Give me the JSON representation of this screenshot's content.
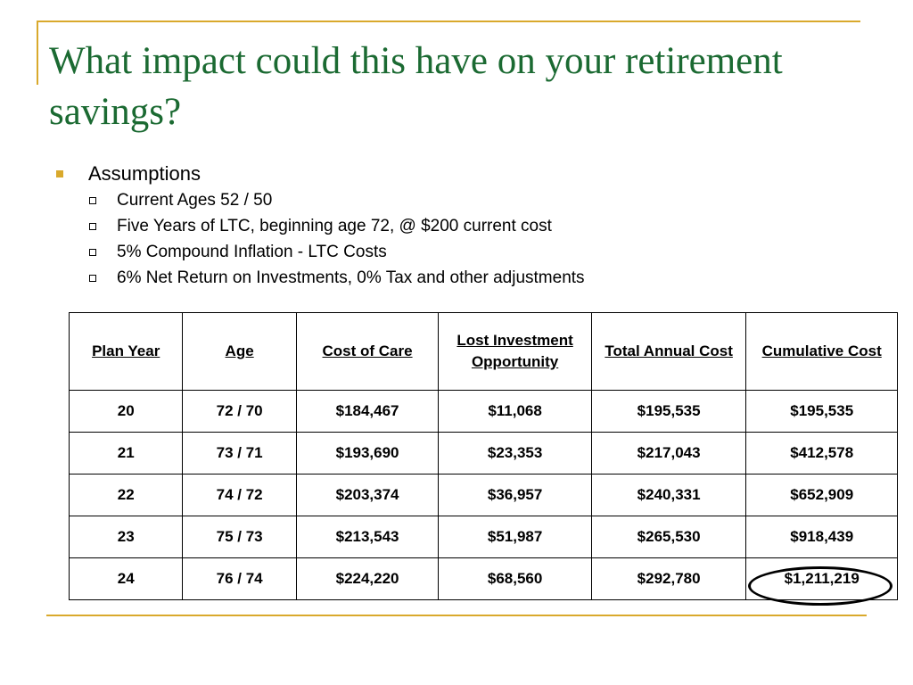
{
  "slide": {
    "title": "What impact could this have on your retirement savings?",
    "bullet": "Assumptions",
    "sub_bullets": [
      "Current Ages 52 / 50",
      "Five Years of LTC, beginning age 72, @ $200 current cost",
      "5% Compound Inflation - LTC Costs",
      "6% Net Return on Investments, 0% Tax and other adjustments"
    ]
  },
  "table": {
    "headers": [
      "Plan Year",
      "Age",
      "Cost of Care",
      "Lost Investment Opportunity",
      "Total Annual Cost",
      "Cumulative Cost"
    ],
    "rows": [
      [
        "20",
        "72 / 70",
        "$184,467",
        "$11,068",
        "$195,535",
        "$195,535"
      ],
      [
        "21",
        "73 / 71",
        "$193,690",
        "$23,353",
        "$217,043",
        "$412,578"
      ],
      [
        "22",
        "74 / 72",
        "$203,374",
        "$36,957",
        "$240,331",
        "$652,909"
      ],
      [
        "23",
        "75 / 73",
        "$213,543",
        "$51,987",
        "$265,530",
        "$918,439"
      ],
      [
        "24",
        "76 / 74",
        "$224,220",
        "$68,560",
        "$292,780",
        "$1,211,219"
      ]
    ]
  },
  "colors": {
    "title": "#1b6a32",
    "accent": "#d9a92c"
  },
  "icons": {
    "level1_bullet": "filled-square-bullet-icon",
    "level2_bullet": "hollow-square-bullet-icon"
  }
}
